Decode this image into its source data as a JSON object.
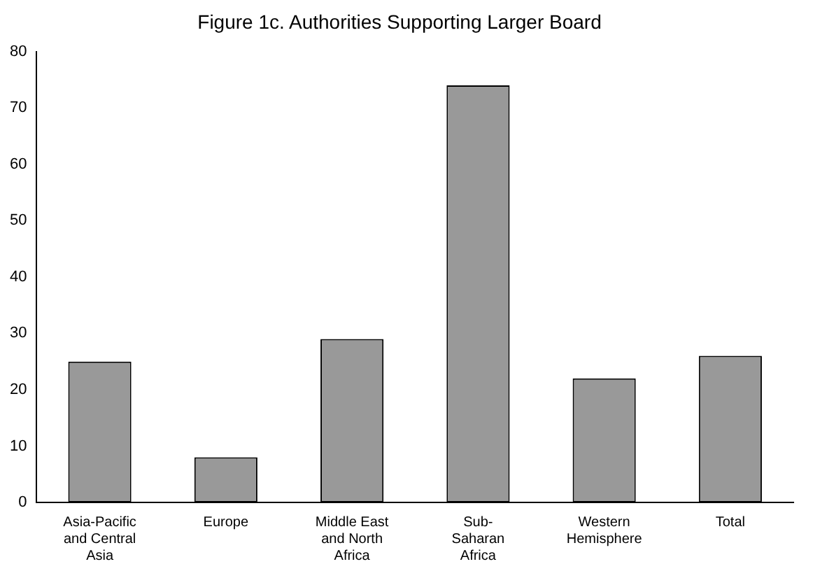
{
  "chart_data": {
    "type": "bar",
    "title": "Figure 1c. Authorities Supporting Larger Board",
    "categories": [
      "Asia-Pacific and Central Asia",
      "Europe",
      "Middle East and North Africa",
      "Sub-Saharan Africa",
      "Western Hemisphere",
      "Total"
    ],
    "values": [
      25,
      8,
      29,
      74,
      22,
      26
    ],
    "color": "#999999",
    "ylim": [
      0,
      80
    ],
    "yticks": [
      0,
      10,
      20,
      30,
      40,
      50,
      60,
      70,
      80
    ],
    "grid": false
  }
}
